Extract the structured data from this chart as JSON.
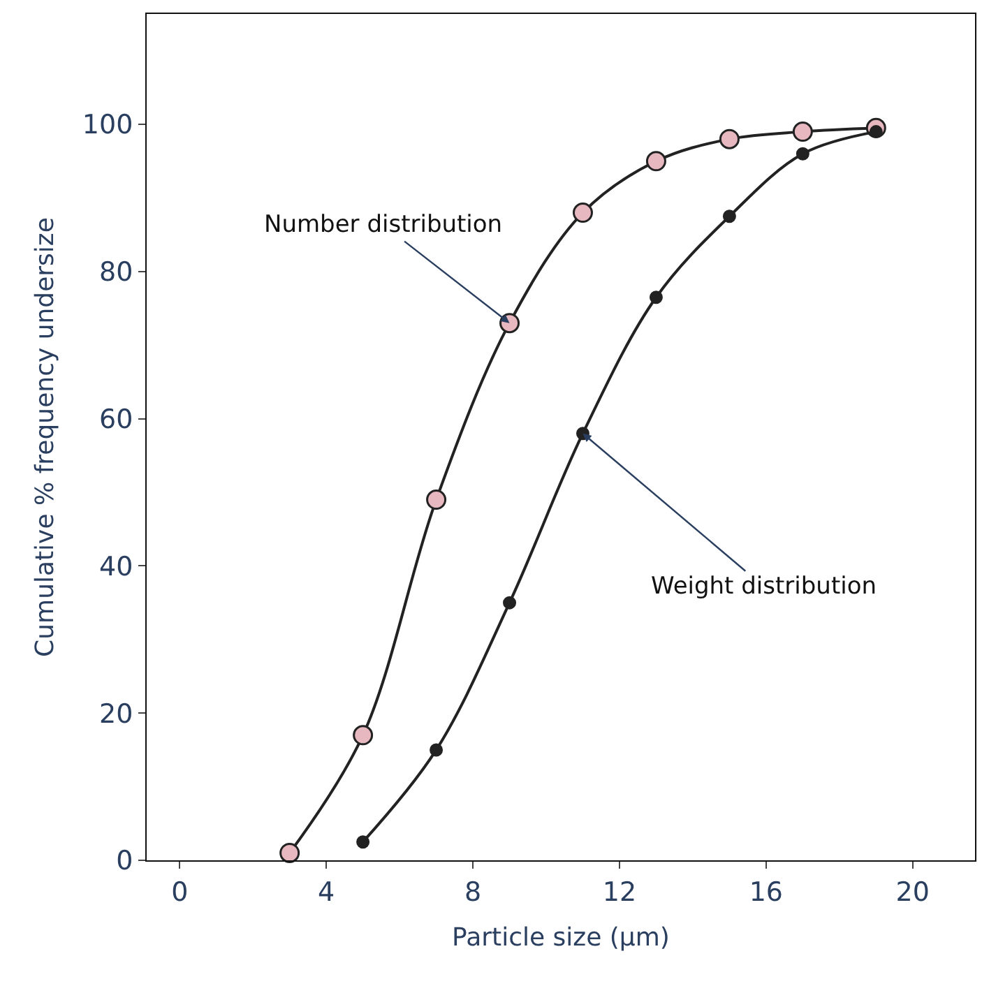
{
  "chart_data": {
    "type": "line",
    "xlabel": "Particle size (µm)",
    "ylabel": "Cumulative % frequency undersize",
    "xlim": [
      -0.9,
      21.7
    ],
    "xticks": [
      0,
      4,
      8,
      12,
      16,
      20
    ],
    "ylim": [
      0,
      115
    ],
    "yticks": [
      0,
      20,
      40,
      60,
      80,
      100
    ],
    "legend": false,
    "marker": "circle",
    "line_style": "solid",
    "series": [
      {
        "x": [
          3,
          5,
          7,
          9,
          11,
          13,
          15,
          17,
          19
        ],
        "values": [
          1,
          17,
          49,
          73,
          88,
          95,
          98,
          99,
          99.5
        ],
        "color": "#e8b8c0"
      },
      {
        "x": [
          5,
          7,
          9,
          11,
          13,
          15,
          17,
          19
        ],
        "values": [
          2.5,
          15,
          35,
          58,
          76.5,
          87.5,
          96,
          99
        ],
        "color": "#222222"
      }
    ],
    "annotations": [
      {
        "text": "Number distribution",
        "x": 9,
        "y": 73
      },
      {
        "text": "Weight distribution",
        "x": 11,
        "y": 58
      }
    ]
  }
}
